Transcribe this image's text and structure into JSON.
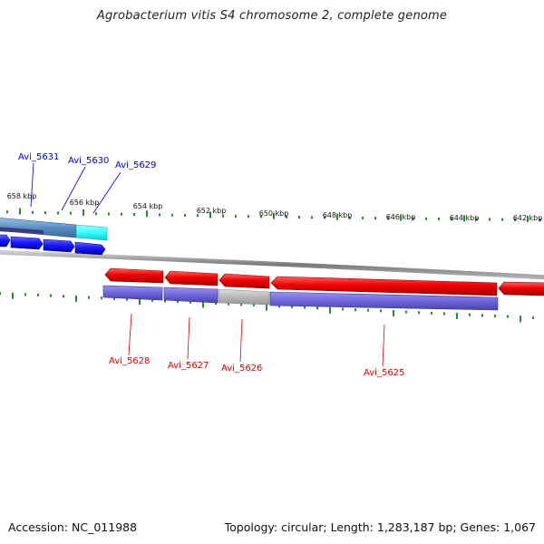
{
  "title": "Agrobacterium vitis S4 chromosome 2, complete genome",
  "ticks": {
    "upper": [
      "658 kbp",
      "656 kbp",
      "654 kbp",
      "652 kbp",
      "650 kbp",
      "648 kbp",
      "646 kbp",
      "644 kbp",
      "642 kbp"
    ]
  },
  "genes": {
    "forward": [
      {
        "label": "Avi_5631",
        "color": "#0000cc"
      },
      {
        "label": "Avi_5630",
        "color": "#0000cc"
      },
      {
        "label": "Avi_5629",
        "color": "#0000cc"
      }
    ],
    "reverse": [
      {
        "label": "Avi_5628",
        "color": "#dd0000"
      },
      {
        "label": "Avi_5627",
        "color": "#dd0000"
      },
      {
        "label": "Avi_5626",
        "color": "#dd0000"
      },
      {
        "label": "Avi_5625",
        "color": "#dd0000"
      }
    ]
  },
  "colors": {
    "forward_cds": "#1a1aff",
    "reverse_cds": "#ee0000",
    "gene_band_blue": "#6d66d9",
    "gene_band_grey": "#b8b8b8",
    "cyan_gene": "#33ffff",
    "backbone": "#888888",
    "tick": "#2a8a2a"
  },
  "footer": {
    "accession": "Accession: NC_011988",
    "summary": "Topology: circular; Length: 1,283,187 bp; Genes: 1,067"
  }
}
